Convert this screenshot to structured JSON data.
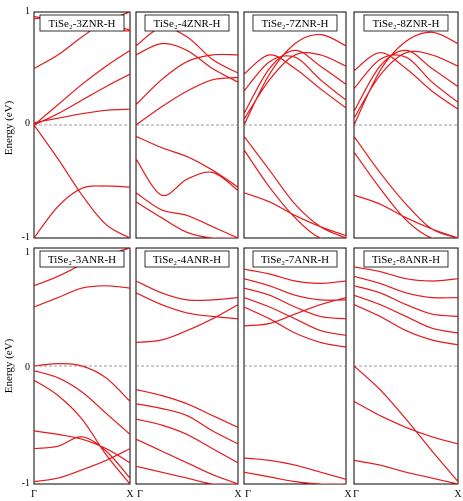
{
  "figure": {
    "rows": [
      {
        "ylabel": "Energy (eV)",
        "yticks": [
          "1",
          "0",
          "-1"
        ]
      },
      {
        "ylabel": "Energy (eV)",
        "yticks": [
          "1",
          "0",
          "-1"
        ]
      }
    ],
    "panel_titles": [
      "TiSe₂-3ZNR-H",
      "TiSe₂-4ZNR-H",
      "TiSe₂-7ZNR-H",
      "TiSe₂-8ZNR-H",
      "TiSe₂-3ANR-H",
      "TiSe₂-4ANR-H",
      "TiSe₂-7ANR-H",
      "TiSe₂-8ANR-H"
    ],
    "xtick_left": "Γ",
    "xtick_right": "X",
    "band_color": "#e31a1c",
    "fermi_line_color": "#777777"
  },
  "chart_data": [
    {
      "type": "line",
      "title": "TiSe₂-3ZNR-H",
      "ylabel": "Energy (eV)",
      "xticks": [
        "Γ",
        "X"
      ],
      "ylim": [
        -1,
        1
      ],
      "x": [
        0,
        0.25,
        0.5,
        0.75,
        1.0
      ],
      "series": [
        {
          "values": [
            0.96,
            0.92,
            0.88,
            0.85,
            0.83
          ]
        },
        {
          "values": [
            0.94,
            0.96,
            0.95,
            0.9,
            0.84
          ]
        },
        {
          "values": [
            0.5,
            0.62,
            0.78,
            0.92,
            1.0
          ]
        },
        {
          "values": [
            0.0,
            0.18,
            0.36,
            0.52,
            0.66
          ]
        },
        {
          "values": [
            0.0,
            0.1,
            0.22,
            0.34,
            0.45
          ]
        },
        {
          "values": [
            0.02,
            0.06,
            0.1,
            0.13,
            0.14
          ]
        },
        {
          "values": [
            0.0,
            -0.3,
            -0.62,
            -0.88,
            -1.0
          ]
        },
        {
          "values": [
            -1.0,
            -0.72,
            -0.56,
            -0.54,
            -0.55
          ]
        }
      ]
    },
    {
      "type": "line",
      "title": "TiSe₂-4ZNR-H",
      "ylabel": "Energy (eV)",
      "xticks": [
        "Γ",
        "X"
      ],
      "ylim": [
        -1,
        1
      ],
      "x": [
        0,
        0.25,
        0.5,
        0.75,
        1.0
      ],
      "series": [
        {
          "values": [
            0.7,
            0.86,
            0.78,
            0.58,
            0.46
          ]
        },
        {
          "values": [
            0.62,
            0.72,
            0.66,
            0.5,
            0.38
          ]
        },
        {
          "values": [
            0.18,
            0.4,
            0.56,
            0.62,
            0.62
          ]
        },
        {
          "values": [
            0.0,
            0.16,
            0.3,
            0.4,
            0.42
          ]
        },
        {
          "values": [
            -0.1,
            -0.2,
            -0.28,
            -0.4,
            -0.55
          ]
        },
        {
          "values": [
            -0.3,
            -0.62,
            -0.48,
            -0.42,
            -0.58
          ]
        },
        {
          "values": [
            -0.6,
            -0.75,
            -0.8,
            -0.9,
            -1.0
          ]
        },
        {
          "values": [
            -0.68,
            -0.82,
            -0.95,
            -1.0,
            -1.0
          ]
        }
      ]
    },
    {
      "type": "line",
      "title": "TiSe₂-7ZNR-H",
      "ylabel": "Energy (eV)",
      "xticks": [
        "Γ",
        "X"
      ],
      "ylim": [
        -1,
        1
      ],
      "x": [
        0,
        0.25,
        0.5,
        0.75,
        1.0
      ],
      "series": [
        {
          "values": [
            0.0,
            0.45,
            0.72,
            0.8,
            0.7
          ]
        },
        {
          "values": [
            0.05,
            0.4,
            0.62,
            0.62,
            0.52
          ]
        },
        {
          "values": [
            0.1,
            0.5,
            0.66,
            0.52,
            0.36
          ]
        },
        {
          "values": [
            0.3,
            0.56,
            0.6,
            0.4,
            0.22
          ]
        },
        {
          "values": [
            0.45,
            0.62,
            0.5,
            0.32,
            0.15
          ]
        },
        {
          "values": [
            -0.1,
            -0.4,
            -0.7,
            -0.9,
            -1.0
          ]
        },
        {
          "values": [
            -0.22,
            -0.55,
            -0.82,
            -1.0,
            -1.0
          ]
        },
        {
          "values": [
            -0.6,
            -0.68,
            -0.8,
            -0.9,
            -0.98
          ]
        }
      ]
    },
    {
      "type": "line",
      "title": "TiSe₂-8ZNR-H",
      "ylabel": "Energy (eV)",
      "xticks": [
        "Γ",
        "X"
      ],
      "ylim": [
        -1,
        1
      ],
      "x": [
        0,
        0.25,
        0.5,
        0.75,
        1.0
      ],
      "series": [
        {
          "values": [
            0.0,
            0.48,
            0.74,
            0.82,
            0.72
          ]
        },
        {
          "values": [
            0.06,
            0.44,
            0.64,
            0.62,
            0.52
          ]
        },
        {
          "values": [
            0.12,
            0.52,
            0.66,
            0.5,
            0.34
          ]
        },
        {
          "values": [
            0.32,
            0.58,
            0.6,
            0.38,
            0.2
          ]
        },
        {
          "values": [
            0.48,
            0.64,
            0.5,
            0.3,
            0.14
          ]
        },
        {
          "values": [
            -0.1,
            -0.42,
            -0.7,
            -0.92,
            -1.0
          ]
        },
        {
          "values": [
            -0.24,
            -0.56,
            -0.84,
            -1.0,
            -1.0
          ]
        },
        {
          "values": [
            -0.62,
            -0.7,
            -0.82,
            -0.92,
            -1.0
          ]
        }
      ]
    },
    {
      "type": "line",
      "title": "TiSe₂-3ANR-H",
      "ylabel": "Energy (eV)",
      "xticks": [
        "Γ",
        "X"
      ],
      "ylim": [
        -1,
        1
      ],
      "x": [
        0,
        0.25,
        0.5,
        0.75,
        1.0
      ],
      "series": [
        {
          "values": [
            0.68,
            0.76,
            0.86,
            0.94,
            1.0
          ]
        },
        {
          "values": [
            0.5,
            0.58,
            0.66,
            0.68,
            0.66
          ]
        },
        {
          "values": [
            0.0,
            0.02,
            0.0,
            -0.1,
            -0.3
          ]
        },
        {
          "values": [
            -0.04,
            -0.1,
            -0.22,
            -0.4,
            -0.58
          ]
        },
        {
          "values": [
            -0.12,
            -0.25,
            -0.45,
            -0.75,
            -1.0
          ]
        },
        {
          "values": [
            -0.55,
            -0.58,
            -0.62,
            -0.7,
            -0.82
          ]
        },
        {
          "values": [
            -0.7,
            -0.68,
            -0.6,
            -0.72,
            -0.95
          ]
        },
        {
          "values": [
            -0.98,
            -0.95,
            -0.88,
            -0.8,
            -0.7
          ]
        }
      ]
    },
    {
      "type": "line",
      "title": "TiSe₂-4ANR-H",
      "ylabel": "Energy (eV)",
      "xticks": [
        "Γ",
        "X"
      ],
      "ylim": [
        -1,
        1
      ],
      "x": [
        0,
        0.25,
        0.5,
        0.75,
        1.0
      ],
      "series": [
        {
          "values": [
            0.72,
            0.62,
            0.56,
            0.56,
            0.58
          ]
        },
        {
          "values": [
            0.62,
            0.52,
            0.45,
            0.42,
            0.4
          ]
        },
        {
          "values": [
            0.2,
            0.22,
            0.3,
            0.4,
            0.52
          ]
        },
        {
          "values": [
            -0.2,
            -0.25,
            -0.32,
            -0.42,
            -0.52
          ]
        },
        {
          "values": [
            -0.32,
            -0.36,
            -0.42,
            -0.55,
            -0.66
          ]
        },
        {
          "values": [
            -0.45,
            -0.5,
            -0.58,
            -0.7,
            -0.82
          ]
        },
        {
          "values": [
            -0.62,
            -0.72,
            -0.82,
            -0.92,
            -1.0
          ]
        },
        {
          "values": [
            -0.85,
            -0.9,
            -0.95,
            -1.0,
            -1.0
          ]
        }
      ]
    },
    {
      "type": "line",
      "title": "TiSe₂-7ANR-H",
      "ylabel": "Energy (eV)",
      "xticks": [
        "Γ",
        "X"
      ],
      "ylim": [
        -1,
        1
      ],
      "x": [
        0,
        0.25,
        0.5,
        0.75,
        1.0
      ],
      "series": [
        {
          "values": [
            0.82,
            0.78,
            0.72,
            0.7,
            0.72
          ]
        },
        {
          "values": [
            0.74,
            0.68,
            0.6,
            0.56,
            0.56
          ]
        },
        {
          "values": [
            0.66,
            0.6,
            0.5,
            0.42,
            0.4
          ]
        },
        {
          "values": [
            0.58,
            0.5,
            0.4,
            0.3,
            0.26
          ]
        },
        {
          "values": [
            0.5,
            0.4,
            0.28,
            0.2,
            0.16
          ]
        },
        {
          "values": [
            0.34,
            0.36,
            0.44,
            0.52,
            0.58
          ]
        },
        {
          "values": [
            -0.78,
            -0.8,
            -0.84,
            -0.9,
            -0.96
          ]
        },
        {
          "values": [
            -0.9,
            -0.94,
            -0.98,
            -1.0,
            -1.0
          ]
        }
      ]
    },
    {
      "type": "line",
      "title": "TiSe₂-8ANR-H",
      "ylabel": "Energy (eV)",
      "xticks": [
        "Γ",
        "X"
      ],
      "ylim": [
        -1,
        1
      ],
      "x": [
        0,
        0.25,
        0.5,
        0.75,
        1.0
      ],
      "series": [
        {
          "values": [
            0.84,
            0.8,
            0.74,
            0.72,
            0.74
          ]
        },
        {
          "values": [
            0.76,
            0.7,
            0.62,
            0.58,
            0.58
          ]
        },
        {
          "values": [
            0.68,
            0.62,
            0.52,
            0.44,
            0.42
          ]
        },
        {
          "values": [
            0.6,
            0.52,
            0.42,
            0.32,
            0.28
          ]
        },
        {
          "values": [
            0.52,
            0.42,
            0.3,
            0.22,
            0.18
          ]
        },
        {
          "values": [
            0.0,
            -0.2,
            -0.45,
            -0.72,
            -0.98
          ]
        },
        {
          "values": [
            -0.3,
            -0.42,
            -0.52,
            -0.6,
            -0.66
          ]
        },
        {
          "values": [
            -0.8,
            -0.84,
            -0.9,
            -0.95,
            -1.0
          ]
        }
      ]
    }
  ]
}
